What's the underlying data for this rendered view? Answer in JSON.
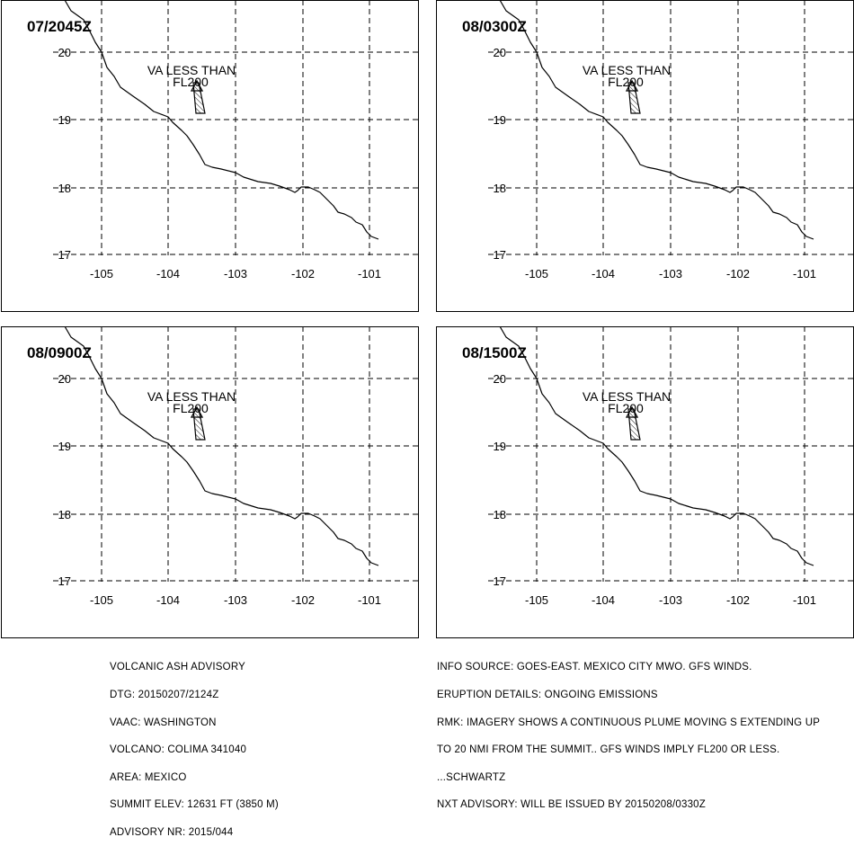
{
  "panels": [
    {
      "time_label": "07/2045Z",
      "annotation_line1": "VA LESS THAN",
      "annotation_line2": "FL200"
    },
    {
      "time_label": "08/0300Z",
      "annotation_line1": "VA LESS THAN",
      "annotation_line2": "FL200"
    },
    {
      "time_label": "08/0900Z",
      "annotation_line1": "VA LESS THAN",
      "annotation_line2": "FL200"
    },
    {
      "time_label": "08/1500Z",
      "annotation_line1": "VA LESS THAN",
      "annotation_line2": "FL200"
    }
  ],
  "map": {
    "lat_labels": [
      "20",
      "19",
      "18",
      "17"
    ],
    "lon_labels": [
      "-105",
      "-104",
      "-103",
      "-102",
      "-101"
    ]
  },
  "advisory_left": [
    "VOLCANIC ASH ADVISORY",
    "DTG: 20150207/2124Z",
    "VAAC: WASHINGTON",
    "VOLCANO: COLIMA 341040",
    "AREA: MEXICO",
    "SUMMIT ELEV: 12631 FT (3850 M)",
    "ADVISORY NR: 2015/044"
  ],
  "advisory_right": [
    "INFO SOURCE: GOES-EAST. MEXICO CITY MWO. GFS WINDS.",
    "ERUPTION DETAILS: ONGOING EMISSIONS",
    "RMK: IMAGERY SHOWS A CONTINUOUS PLUME MOVING S EXTENDING UP",
    "TO 20 NMI FROM THE SUMMIT.. GFS WINDS IMPLY FL200 OR LESS.",
    "...SCHWARTZ",
    "NXT ADVISORY: WILL BE ISSUED BY 20150208/0330Z"
  ]
}
